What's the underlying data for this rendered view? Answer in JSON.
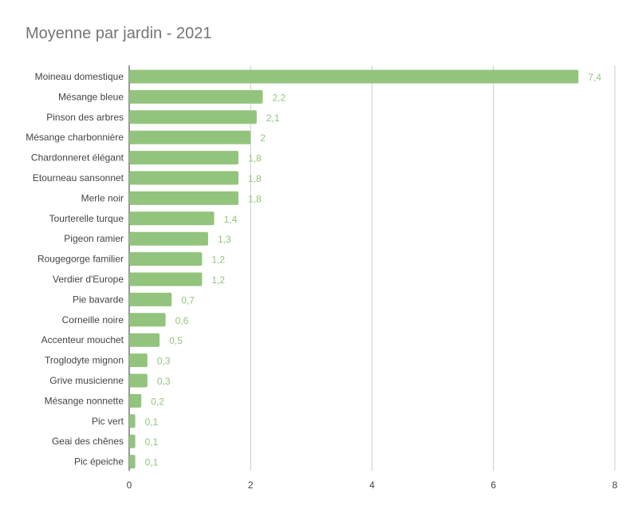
{
  "chart_data": {
    "type": "bar",
    "orientation": "horizontal",
    "title": "Moyenne par jardin - 2021",
    "xlabel": "",
    "ylabel": "",
    "xlim": [
      0,
      8
    ],
    "xticks": [
      "0",
      "2",
      "4",
      "6",
      "8"
    ],
    "grid": true,
    "legend": "none",
    "bar_color": "#93c47d",
    "value_label_color": "#93c47d",
    "categories": [
      "Moineau domestique",
      "Mésange bleue",
      "Pinson des arbres",
      "Mésange charbonnière",
      "Chardonneret élégant",
      "Etourneau sansonnet",
      "Merle noir",
      "Tourterelle turque",
      "Pigeon ramier",
      "Rougegorge familier",
      "Verdier d'Europe",
      "Pie bavarde",
      "Corneille noire",
      "Accenteur mouchet",
      "Troglodyte mignon",
      "Grive musicienne",
      "Mésange nonnette",
      "Pic vert",
      "Geai des chênes",
      "Pic épeiche"
    ],
    "values": [
      7.4,
      2.2,
      2.1,
      2,
      1.8,
      1.8,
      1.8,
      1.4,
      1.3,
      1.2,
      1.2,
      0.7,
      0.6,
      0.5,
      0.3,
      0.3,
      0.2,
      0.1,
      0.1,
      0.1
    ],
    "value_labels": [
      "7,4",
      "2,2",
      "2,1",
      "2",
      "1,8",
      "1,8",
      "1,8",
      "1,4",
      "1,3",
      "1,2",
      "1,2",
      "0,7",
      "0,6",
      "0,5",
      "0,3",
      "0,3",
      "0,2",
      "0,1",
      "0,1",
      "0,1"
    ]
  }
}
